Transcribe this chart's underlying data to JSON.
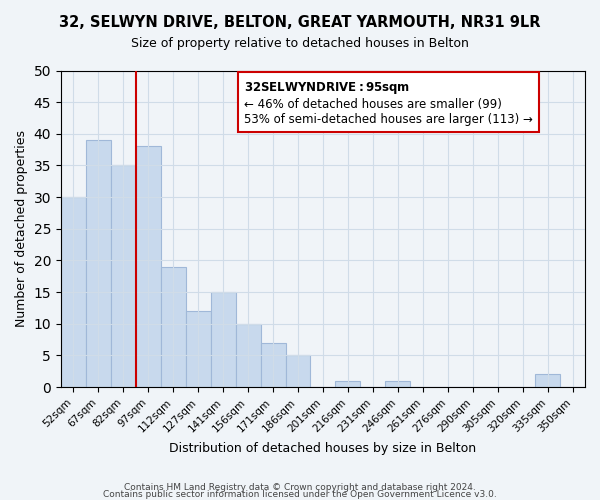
{
  "title": "32, SELWYN DRIVE, BELTON, GREAT YARMOUTH, NR31 9LR",
  "subtitle": "Size of property relative to detached houses in Belton",
  "xlabel": "Distribution of detached houses by size in Belton",
  "ylabel": "Number of detached properties",
  "bar_color": "#c8d9ed",
  "bar_edge_color": "#a0b8d8",
  "categories": [
    "52sqm",
    "67sqm",
    "82sqm",
    "97sqm",
    "112sqm",
    "127sqm",
    "141sqm",
    "156sqm",
    "171sqm",
    "186sqm",
    "201sqm",
    "216sqm",
    "231sqm",
    "246sqm",
    "261sqm",
    "276sqm",
    "290sqm",
    "305sqm",
    "320sqm",
    "335sqm",
    "350sqm"
  ],
  "values": [
    30,
    39,
    35,
    38,
    19,
    12,
    15,
    10,
    7,
    5,
    0,
    1,
    0,
    1,
    0,
    0,
    0,
    0,
    0,
    2,
    0
  ],
  "ylim": [
    0,
    50
  ],
  "yticks": [
    0,
    5,
    10,
    15,
    20,
    25,
    30,
    35,
    40,
    45,
    50
  ],
  "annotation_title": "32 SELWYN DRIVE: 95sqm",
  "annotation_line1": "← 46% of detached houses are smaller (99)",
  "annotation_line2": "53% of semi-detached houses are larger (113) →",
  "vline_x": 3,
  "vline_color": "#cc0000",
  "annotation_box_color": "#ffffff",
  "annotation_box_edgecolor": "#cc0000",
  "grid_color": "#d0dce8",
  "footnote1": "Contains HM Land Registry data © Crown copyright and database right 2024.",
  "footnote2": "Contains public sector information licensed under the Open Government Licence v3.0."
}
